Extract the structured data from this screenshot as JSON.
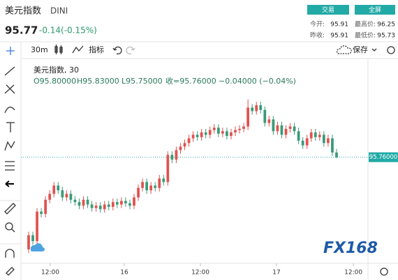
{
  "header": {
    "title": "美元指数",
    "symbol": "DINI",
    "price": "95.77",
    "change": "-0.14(-0.15%)",
    "buttons": [
      "交易",
      "全屏"
    ],
    "stats": [
      {
        "label": "今开:",
        "value": "95.91"
      },
      {
        "label": "最高价:",
        "value": "96.25"
      },
      {
        "label": "昨收:",
        "value": "95.91"
      },
      {
        "label": "最低价:",
        "value": "95.73"
      }
    ]
  },
  "toolbar": {
    "interval": "30m",
    "indicators": "指标",
    "save": "保存"
  },
  "legend": {
    "name": "美元指数, 30",
    "open": "O95.80000",
    "high": "H95.83000",
    "low": "L95.75000",
    "close": "收=95.76000",
    "change": "−0.04000 (−0.04%)"
  },
  "watermark": "FX168",
  "chart_data": {
    "type": "candlestick",
    "up_color": "#e0524f",
    "down_color": "#3a9a78",
    "xlim": [
      -0.66,
      80.45
    ],
    "ylim": [
      94.88,
      96.56
    ],
    "xticks": [
      {
        "value": 5.13,
        "label": "12:00"
      },
      {
        "value": 22.68,
        "label": "16"
      },
      {
        "value": 40.73,
        "label": "12:00"
      },
      {
        "value": 58.77,
        "label": "17"
      },
      {
        "value": 76.99,
        "label": "12:00"
      }
    ],
    "price_line": {
      "value": 95.76,
      "label": "95.76000"
    },
    "open": [
      94.98,
      95.1,
      95.05,
      95.3,
      95.28,
      95.4,
      95.45,
      95.52,
      95.48,
      95.42,
      95.45,
      95.4,
      95.38,
      95.35,
      95.4,
      95.36,
      95.33,
      95.35,
      95.32,
      95.36,
      95.34,
      95.38,
      95.36,
      95.39,
      95.37,
      95.35,
      95.42,
      95.5,
      95.55,
      95.48,
      95.52,
      95.5,
      95.58,
      95.55,
      95.78,
      95.74,
      95.82,
      95.85,
      95.88,
      95.92,
      95.95,
      95.93,
      95.97,
      95.95,
      95.99,
      96.01,
      95.96,
      95.98,
      95.94,
      95.97,
      95.99,
      96.0,
      96.02,
      96.18,
      96.15,
      96.2,
      96.16,
      96.05,
      96.08,
      95.98,
      96.03,
      95.95,
      96.0,
      96.02,
      95.98,
      95.9,
      95.86,
      95.92,
      95.97,
      95.93,
      95.95,
      95.88,
      95.92,
      95.8
    ],
    "high": [
      95.13,
      95.13,
      95.33,
      95.33,
      95.43,
      95.48,
      95.55,
      95.55,
      95.51,
      95.48,
      95.48,
      95.43,
      95.41,
      95.43,
      95.43,
      95.39,
      95.38,
      95.38,
      95.39,
      95.39,
      95.41,
      95.41,
      95.42,
      95.42,
      95.4,
      95.45,
      95.53,
      95.58,
      95.58,
      95.55,
      95.55,
      95.61,
      95.61,
      95.81,
      95.81,
      95.85,
      95.88,
      95.91,
      95.95,
      95.98,
      95.98,
      96.0,
      96.0,
      96.02,
      96.04,
      96.04,
      96.01,
      96.01,
      96.0,
      96.02,
      96.03,
      96.05,
      96.25,
      96.21,
      96.23,
      96.23,
      96.19,
      96.11,
      96.11,
      96.06,
      96.06,
      96.03,
      96.05,
      96.05,
      96.01,
      95.93,
      95.95,
      96.0,
      96.0,
      95.98,
      95.98,
      95.95,
      95.95,
      95.83
    ],
    "low": [
      94.95,
      95.02,
      95.02,
      95.25,
      95.25,
      95.37,
      95.42,
      95.45,
      95.39,
      95.39,
      95.37,
      95.35,
      95.32,
      95.32,
      95.33,
      95.3,
      95.3,
      95.29,
      95.29,
      95.31,
      95.31,
      95.33,
      95.33,
      95.34,
      95.32,
      95.32,
      95.39,
      95.47,
      95.45,
      95.45,
      95.47,
      95.47,
      95.52,
      95.52,
      95.71,
      95.71,
      95.79,
      95.82,
      95.85,
      95.89,
      95.9,
      95.9,
      95.92,
      95.92,
      95.96,
      95.93,
      95.93,
      95.91,
      95.91,
      95.94,
      95.96,
      95.97,
      95.99,
      96.12,
      96.12,
      96.13,
      96.02,
      96.02,
      95.95,
      95.95,
      95.92,
      95.92,
      95.97,
      95.95,
      95.87,
      95.83,
      95.83,
      95.89,
      95.9,
      95.9,
      95.85,
      95.85,
      95.77,
      95.75
    ],
    "close": [
      95.1,
      95.05,
      95.3,
      95.28,
      95.4,
      95.45,
      95.52,
      95.48,
      95.42,
      95.45,
      95.4,
      95.38,
      95.35,
      95.4,
      95.36,
      95.33,
      95.35,
      95.32,
      95.36,
      95.34,
      95.38,
      95.36,
      95.39,
      95.37,
      95.35,
      95.42,
      95.5,
      95.55,
      95.48,
      95.52,
      95.5,
      95.58,
      95.55,
      95.78,
      95.74,
      95.82,
      95.85,
      95.88,
      95.92,
      95.95,
      95.93,
      95.97,
      95.95,
      95.99,
      96.01,
      95.96,
      95.98,
      95.94,
      95.97,
      95.99,
      96.0,
      96.02,
      96.18,
      96.15,
      96.2,
      96.16,
      96.05,
      96.08,
      95.98,
      96.03,
      95.95,
      96.0,
      96.02,
      95.98,
      95.9,
      95.86,
      95.92,
      95.97,
      95.93,
      95.95,
      95.88,
      95.92,
      95.8,
      95.76
    ]
  }
}
